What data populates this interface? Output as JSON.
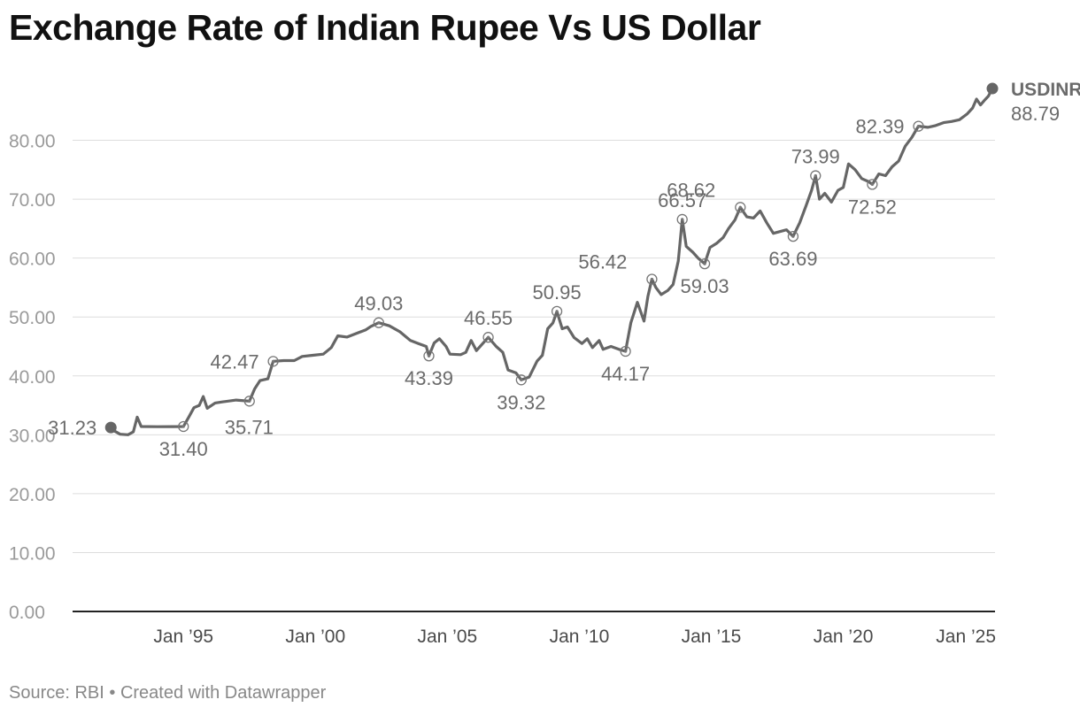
{
  "chart_data": {
    "type": "line",
    "title": "Exchange Rate of Indian Rupee Vs US Dollar",
    "source": "Source: RBI • Created with Datawrapper",
    "series_name": "USDINR",
    "ylim": [
      0,
      90
    ],
    "yticks": [
      0,
      10,
      20,
      30,
      40,
      50,
      60,
      70,
      80
    ],
    "ytick_labels": [
      "0.00",
      "10.00",
      "20.00",
      "30.00",
      "40.00",
      "50.00",
      "60.00",
      "70.00",
      "80.00"
    ],
    "xlim": [
      1990.8,
      2025.75
    ],
    "xticks": [
      1995,
      2000,
      2005,
      2010,
      2015,
      2020,
      2025
    ],
    "xtick_labels": [
      "Jan ’95",
      "Jan ’00",
      "Jan ’05",
      "Jan ’10",
      "Jan ’15",
      "Jan ’20",
      "Jan ’25"
    ],
    "series": [
      {
        "name": "USDINR",
        "points": [
          [
            1992.25,
            31.23
          ],
          [
            1992.4,
            30.6
          ],
          [
            1992.6,
            30.1
          ],
          [
            1992.9,
            30.0
          ],
          [
            1993.1,
            30.5
          ],
          [
            1993.25,
            33.0
          ],
          [
            1993.4,
            31.4
          ],
          [
            1994.0,
            31.37
          ],
          [
            1994.6,
            31.38
          ],
          [
            1995.0,
            31.4
          ],
          [
            1995.2,
            33.0
          ],
          [
            1995.4,
            34.6
          ],
          [
            1995.6,
            35.0
          ],
          [
            1995.75,
            36.5
          ],
          [
            1995.9,
            34.5
          ],
          [
            1996.2,
            35.4
          ],
          [
            1996.5,
            35.6
          ],
          [
            1997.0,
            35.9
          ],
          [
            1997.5,
            35.71
          ],
          [
            1997.7,
            37.8
          ],
          [
            1997.9,
            39.2
          ],
          [
            1998.2,
            39.5
          ],
          [
            1998.4,
            42.47
          ],
          [
            1998.8,
            42.6
          ],
          [
            1999.2,
            42.6
          ],
          [
            1999.5,
            43.3
          ],
          [
            1999.9,
            43.5
          ],
          [
            2000.3,
            43.7
          ],
          [
            2000.6,
            44.8
          ],
          [
            2000.85,
            46.8
          ],
          [
            2001.2,
            46.6
          ],
          [
            2001.6,
            47.3
          ],
          [
            2001.9,
            47.8
          ],
          [
            2002.1,
            48.4
          ],
          [
            2002.4,
            49.03
          ],
          [
            2002.8,
            48.5
          ],
          [
            2003.2,
            47.5
          ],
          [
            2003.6,
            46.0
          ],
          [
            2003.9,
            45.5
          ],
          [
            2004.2,
            45.0
          ],
          [
            2004.3,
            43.39
          ],
          [
            2004.5,
            45.6
          ],
          [
            2004.7,
            46.3
          ],
          [
            2004.95,
            45.0
          ],
          [
            2005.1,
            43.7
          ],
          [
            2005.5,
            43.6
          ],
          [
            2005.7,
            44.0
          ],
          [
            2005.9,
            46.0
          ],
          [
            2006.1,
            44.3
          ],
          [
            2006.4,
            45.8
          ],
          [
            2006.55,
            46.55
          ],
          [
            2006.85,
            45.0
          ],
          [
            2007.1,
            44.0
          ],
          [
            2007.3,
            41.0
          ],
          [
            2007.6,
            40.5
          ],
          [
            2007.8,
            39.32
          ],
          [
            2008.1,
            39.8
          ],
          [
            2008.4,
            42.5
          ],
          [
            2008.6,
            43.5
          ],
          [
            2008.8,
            48.0
          ],
          [
            2009.0,
            49.0
          ],
          [
            2009.15,
            50.95
          ],
          [
            2009.35,
            48.0
          ],
          [
            2009.55,
            48.3
          ],
          [
            2009.8,
            46.5
          ],
          [
            2010.1,
            45.5
          ],
          [
            2010.3,
            46.3
          ],
          [
            2010.5,
            44.8
          ],
          [
            2010.75,
            46.0
          ],
          [
            2010.9,
            44.5
          ],
          [
            2011.2,
            45.0
          ],
          [
            2011.5,
            44.5
          ],
          [
            2011.75,
            44.17
          ],
          [
            2011.95,
            49.0
          ],
          [
            2012.2,
            52.5
          ],
          [
            2012.45,
            49.3
          ],
          [
            2012.6,
            53.5
          ],
          [
            2012.75,
            56.42
          ],
          [
            2012.9,
            55.0
          ],
          [
            2013.1,
            53.8
          ],
          [
            2013.35,
            54.5
          ],
          [
            2013.55,
            55.5
          ],
          [
            2013.75,
            59.5
          ],
          [
            2013.9,
            66.57
          ],
          [
            2014.05,
            62.0
          ],
          [
            2014.3,
            61.0
          ],
          [
            2014.5,
            60.0
          ],
          [
            2014.75,
            59.03
          ],
          [
            2014.95,
            61.8
          ],
          [
            2015.2,
            62.5
          ],
          [
            2015.45,
            63.5
          ],
          [
            2015.65,
            65.0
          ],
          [
            2015.9,
            66.5
          ],
          [
            2016.1,
            68.62
          ],
          [
            2016.35,
            67.0
          ],
          [
            2016.6,
            66.8
          ],
          [
            2016.85,
            68.0
          ],
          [
            2017.1,
            66.0
          ],
          [
            2017.35,
            64.2
          ],
          [
            2017.6,
            64.5
          ],
          [
            2017.85,
            64.8
          ],
          [
            2018.1,
            63.69
          ],
          [
            2018.35,
            66.0
          ],
          [
            2018.6,
            69.0
          ],
          [
            2018.8,
            71.5
          ],
          [
            2018.95,
            73.99
          ],
          [
            2019.1,
            70.0
          ],
          [
            2019.3,
            71.0
          ],
          [
            2019.55,
            69.5
          ],
          [
            2019.8,
            71.5
          ],
          [
            2020.0,
            72.0
          ],
          [
            2020.2,
            76.0
          ],
          [
            2020.45,
            75.0
          ],
          [
            2020.7,
            73.5
          ],
          [
            2020.95,
            73.0
          ],
          [
            2021.1,
            72.52
          ],
          [
            2021.35,
            74.3
          ],
          [
            2021.6,
            74.0
          ],
          [
            2021.85,
            75.5
          ],
          [
            2022.1,
            76.5
          ],
          [
            2022.35,
            79.0
          ],
          [
            2022.6,
            80.5
          ],
          [
            2022.85,
            82.39
          ],
          [
            2023.2,
            82.2
          ],
          [
            2023.5,
            82.5
          ],
          [
            2023.8,
            83.0
          ],
          [
            2024.1,
            83.2
          ],
          [
            2024.4,
            83.5
          ],
          [
            2024.7,
            84.5
          ],
          [
            2024.9,
            85.5
          ],
          [
            2025.05,
            87.0
          ],
          [
            2025.2,
            86.0
          ],
          [
            2025.35,
            86.8
          ],
          [
            2025.5,
            87.5
          ],
          [
            2025.65,
            88.79
          ]
        ]
      }
    ],
    "annotations": [
      {
        "x": 1992.25,
        "value": 31.23,
        "label": "31.23",
        "pos": "left",
        "marker": "filled"
      },
      {
        "x": 1995.0,
        "value": 31.4,
        "label": "31.40",
        "pos": "below",
        "marker": "ring"
      },
      {
        "x": 1997.5,
        "value": 35.71,
        "label": "35.71",
        "pos": "below-right",
        "marker": "ring"
      },
      {
        "x": 1998.4,
        "value": 42.47,
        "label": "42.47",
        "pos": "left",
        "marker": "ring"
      },
      {
        "x": 2002.4,
        "value": 49.03,
        "label": "49.03",
        "pos": "above",
        "marker": "ring"
      },
      {
        "x": 2004.3,
        "value": 43.39,
        "label": "43.39",
        "pos": "below",
        "marker": "ring"
      },
      {
        "x": 2006.55,
        "value": 46.55,
        "label": "46.55",
        "pos": "above",
        "marker": "ring"
      },
      {
        "x": 2007.8,
        "value": 39.32,
        "label": "39.32",
        "pos": "below",
        "marker": "ring"
      },
      {
        "x": 2009.15,
        "value": 50.95,
        "label": "50.95",
        "pos": "above",
        "marker": "ring"
      },
      {
        "x": 2011.75,
        "value": 44.17,
        "label": "44.17",
        "pos": "below",
        "marker": "ring"
      },
      {
        "x": 2012.75,
        "value": 56.42,
        "label": "56.42",
        "pos": "above-left",
        "marker": "ring"
      },
      {
        "x": 2013.9,
        "value": 66.57,
        "label": "66.57",
        "pos": "above",
        "marker": "ring"
      },
      {
        "x": 2014.75,
        "value": 59.03,
        "label": "59.03",
        "pos": "below",
        "marker": "ring"
      },
      {
        "x": 2016.1,
        "value": 68.62,
        "label": "68.62",
        "pos": "above-left",
        "marker": "ring"
      },
      {
        "x": 2018.1,
        "value": 63.69,
        "label": "63.69",
        "pos": "below",
        "marker": "ring"
      },
      {
        "x": 2018.95,
        "value": 73.99,
        "label": "73.99",
        "pos": "above",
        "marker": "ring"
      },
      {
        "x": 2021.1,
        "value": 72.52,
        "label": "72.52",
        "pos": "below",
        "marker": "ring"
      },
      {
        "x": 2022.85,
        "value": 82.39,
        "label": "82.39",
        "pos": "left",
        "marker": "ring"
      },
      {
        "x": 2025.65,
        "value": 88.79,
        "label": "88.79",
        "pos": "end",
        "marker": "filled"
      }
    ]
  }
}
